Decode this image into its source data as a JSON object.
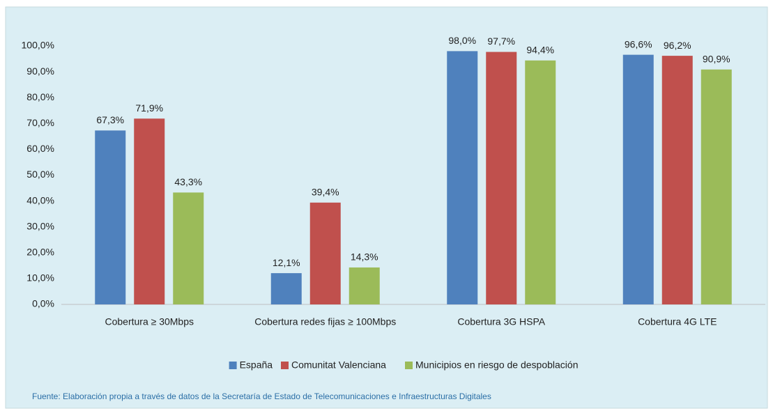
{
  "chart_data": {
    "type": "bar",
    "categories": [
      "Cobertura ≥ 30Mbps",
      "Cobertura redes fijas ≥ 100Mbps",
      "Cobertura 3G HSPA",
      "Cobertura 4G LTE"
    ],
    "series": [
      {
        "name": "España",
        "color": "#4f81bd",
        "values": [
          67.3,
          12.1,
          98.0,
          96.6
        ],
        "value_labels": [
          "67,3%",
          "12,1%",
          "98,0%",
          "96,6%"
        ]
      },
      {
        "name": "Comunitat Valenciana",
        "color": "#c0504d",
        "values": [
          71.9,
          39.4,
          97.7,
          96.2
        ],
        "value_labels": [
          "71,9%",
          "39,4%",
          "97,7%",
          "96,2%"
        ]
      },
      {
        "name": "Municipios en riesgo de despoblación",
        "color": "#9bbb59",
        "values": [
          43.3,
          14.3,
          94.4,
          90.9
        ],
        "value_labels": [
          "43,3%",
          "14,3%",
          "94,4%",
          "90,9%"
        ]
      }
    ],
    "ylim": [
      0,
      100
    ],
    "yticks": [
      {
        "value": 0,
        "label": "0,0%"
      },
      {
        "value": 10,
        "label": "10,0%"
      },
      {
        "value": 20,
        "label": "20,0%"
      },
      {
        "value": 30,
        "label": "30,0%"
      },
      {
        "value": 40,
        "label": "40,0%"
      },
      {
        "value": 50,
        "label": "50,0%"
      },
      {
        "value": 60,
        "label": "60,0%"
      },
      {
        "value": 70,
        "label": "70,0%"
      },
      {
        "value": 80,
        "label": "80,0%"
      },
      {
        "value": 90,
        "label": "90,0%"
      },
      {
        "value": 100,
        "label": "100,0%"
      }
    ],
    "legend": "bottom",
    "source": "Fuente: Elaboración propia a través de datos de la Secretaría de Estado de Telecomunicaciones e Infraestructuras Digitales"
  }
}
